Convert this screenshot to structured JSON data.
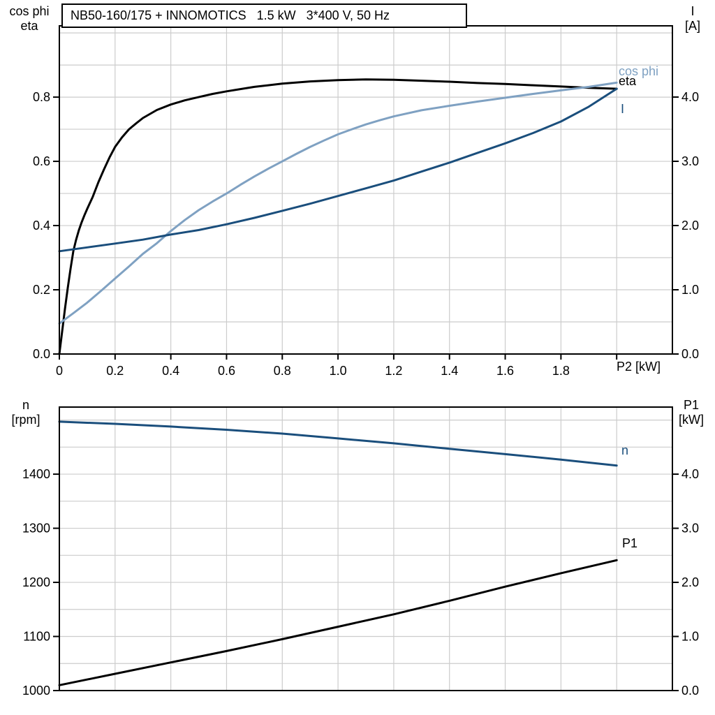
{
  "window": {
    "background": "#ffffff"
  },
  "title_box": {
    "text": "NB50-160/175 + INNOMOTICS   1.5 kW   3*400 V, 50 Hz"
  },
  "colors": {
    "eta": "#000000",
    "cos_phi": "#7fa1c2",
    "current": "#1a4e7c",
    "n": "#1a4e7c",
    "p1": "#000000",
    "grid": "#cccccc",
    "axis": "#000000",
    "text": "#000000"
  },
  "chart_data": [
    {
      "type": "line",
      "title": "NB50-160/175 + INNOMOTICS   1.5 kW   3*400 V, 50 Hz",
      "left_axis": {
        "label_lines": [
          "cos phi",
          "eta"
        ],
        "range": [
          0,
          1.022
        ],
        "tick_values": [
          0.0,
          0.2,
          0.4,
          0.6,
          0.8
        ],
        "tick_labels": [
          "0.0",
          "0.2",
          "0.4",
          "0.6",
          "0.8"
        ],
        "grid": {
          "start": 0.1,
          "end": 1.0,
          "step": 0.1
        }
      },
      "right_axis": {
        "label_lines": [
          "I",
          "[A]"
        ],
        "range": [
          0,
          5.109
        ],
        "tick_values": [
          0.0,
          1.0,
          2.0,
          3.0,
          4.0
        ],
        "tick_labels": [
          "0.0",
          "1.0",
          "2.0",
          "3.0",
          "4.0"
        ]
      },
      "x_axis": {
        "label": "P2 [kW]",
        "range": [
          0,
          2.2
        ],
        "show_ticks": true,
        "tick_values": [
          0,
          0.2,
          0.4,
          0.6,
          0.8,
          1.0,
          1.2,
          1.4,
          1.6,
          1.8,
          2.0
        ],
        "tick_labels": [
          "0",
          "0.2",
          "0.4",
          "0.6",
          "0.8",
          "1.0",
          "1.2",
          "1.4",
          "1.6",
          "1.8",
          ""
        ],
        "grid": {
          "start": 0.2,
          "end": 2.0,
          "step": 0.2
        }
      },
      "series": [
        {
          "name": "eta",
          "label": "eta",
          "axis": "left",
          "color_key": "eta",
          "points": [
            [
              0,
              0
            ],
            [
              0.01,
              0.07
            ],
            [
              0.02,
              0.14
            ],
            [
              0.03,
              0.205
            ],
            [
              0.04,
              0.265
            ],
            [
              0.05,
              0.32
            ],
            [
              0.06,
              0.355
            ],
            [
              0.07,
              0.385
            ],
            [
              0.08,
              0.41
            ],
            [
              0.09,
              0.432
            ],
            [
              0.1,
              0.452
            ],
            [
              0.12,
              0.49
            ],
            [
              0.14,
              0.535
            ],
            [
              0.16,
              0.575
            ],
            [
              0.18,
              0.612
            ],
            [
              0.2,
              0.645
            ],
            [
              0.225,
              0.675
            ],
            [
              0.25,
              0.7
            ],
            [
              0.275,
              0.718
            ],
            [
              0.3,
              0.735
            ],
            [
              0.35,
              0.76
            ],
            [
              0.4,
              0.777
            ],
            [
              0.45,
              0.79
            ],
            [
              0.5,
              0.8
            ],
            [
              0.55,
              0.81
            ],
            [
              0.6,
              0.818
            ],
            [
              0.7,
              0.832
            ],
            [
              0.8,
              0.842
            ],
            [
              0.9,
              0.849
            ],
            [
              1.0,
              0.853
            ],
            [
              1.1,
              0.855
            ],
            [
              1.2,
              0.854
            ],
            [
              1.3,
              0.851
            ],
            [
              1.4,
              0.848
            ],
            [
              1.5,
              0.844
            ],
            [
              1.6,
              0.841
            ],
            [
              1.7,
              0.837
            ],
            [
              1.8,
              0.833
            ],
            [
              1.9,
              0.829
            ],
            [
              2.0,
              0.826
            ]
          ]
        },
        {
          "name": "cos phi",
          "label": "cos phi",
          "axis": "left",
          "color_key": "cos_phi",
          "points": [
            [
              0,
              0.095
            ],
            [
              0.05,
              0.127
            ],
            [
              0.1,
              0.16
            ],
            [
              0.15,
              0.197
            ],
            [
              0.2,
              0.235
            ],
            [
              0.25,
              0.273
            ],
            [
              0.3,
              0.312
            ],
            [
              0.35,
              0.345
            ],
            [
              0.4,
              0.383
            ],
            [
              0.45,
              0.417
            ],
            [
              0.5,
              0.448
            ],
            [
              0.55,
              0.475
            ],
            [
              0.6,
              0.5
            ],
            [
              0.65,
              0.527
            ],
            [
              0.7,
              0.553
            ],
            [
              0.75,
              0.577
            ],
            [
              0.8,
              0.6
            ],
            [
              0.85,
              0.623
            ],
            [
              0.9,
              0.645
            ],
            [
              0.95,
              0.665
            ],
            [
              1.0,
              0.684
            ],
            [
              1.05,
              0.7
            ],
            [
              1.1,
              0.715
            ],
            [
              1.15,
              0.728
            ],
            [
              1.2,
              0.74
            ],
            [
              1.3,
              0.759
            ],
            [
              1.4,
              0.773
            ],
            [
              1.5,
              0.786
            ],
            [
              1.6,
              0.798
            ],
            [
              1.7,
              0.81
            ],
            [
              1.8,
              0.821
            ],
            [
              1.9,
              0.832
            ],
            [
              2.0,
              0.845
            ]
          ]
        },
        {
          "name": "I",
          "label": "I",
          "axis": "right",
          "color_key": "current",
          "points": [
            [
              0,
              1.6
            ],
            [
              0.1,
              1.66
            ],
            [
              0.2,
              1.72
            ],
            [
              0.3,
              1.78
            ],
            [
              0.4,
              1.86
            ],
            [
              0.5,
              1.93
            ],
            [
              0.6,
              2.02
            ],
            [
              0.7,
              2.12
            ],
            [
              0.8,
              2.23
            ],
            [
              0.9,
              2.34
            ],
            [
              1.0,
              2.46
            ],
            [
              1.1,
              2.58
            ],
            [
              1.2,
              2.7
            ],
            [
              1.3,
              2.84
            ],
            [
              1.4,
              2.98
            ],
            [
              1.5,
              3.13
            ],
            [
              1.6,
              3.28
            ],
            [
              1.7,
              3.44
            ],
            [
              1.8,
              3.62
            ],
            [
              1.9,
              3.85
            ],
            [
              2.0,
              4.13
            ]
          ]
        }
      ]
    },
    {
      "type": "line",
      "left_axis": {
        "label_lines": [
          "n",
          "[rpm]"
        ],
        "range": [
          1000,
          1524
        ],
        "tick_values": [
          1000,
          1100,
          1200,
          1300,
          1400
        ],
        "tick_labels": [
          "1000",
          "1100",
          "1200",
          "1300",
          "1400"
        ],
        "grid": {
          "start": 1050,
          "end": 1500,
          "step": 50
        }
      },
      "right_axis": {
        "label_lines": [
          "P1",
          "[kW]"
        ],
        "range": [
          0,
          5.24
        ],
        "tick_values": [
          0.0,
          1.0,
          2.0,
          3.0,
          4.0
        ],
        "tick_labels": [
          "0.0",
          "1.0",
          "2.0",
          "3.0",
          "4.0"
        ]
      },
      "x_axis": {
        "label": "",
        "range": [
          0,
          2.2
        ],
        "show_ticks": false,
        "tick_values": [],
        "tick_labels": [],
        "grid": {
          "start": 0.2,
          "end": 2.0,
          "step": 0.2
        }
      },
      "series": [
        {
          "name": "n",
          "label": "n",
          "axis": "left",
          "color_key": "n",
          "points": [
            [
              0,
              1497
            ],
            [
              0.2,
              1493
            ],
            [
              0.4,
              1488
            ],
            [
              0.6,
              1482
            ],
            [
              0.8,
              1475
            ],
            [
              1.0,
              1466
            ],
            [
              1.2,
              1457
            ],
            [
              1.4,
              1447
            ],
            [
              1.6,
              1437
            ],
            [
              1.8,
              1427
            ],
            [
              2.0,
              1416
            ]
          ]
        },
        {
          "name": "P1",
          "label": "P1",
          "axis": "right",
          "color_key": "p1",
          "points": [
            [
              0,
              0.1
            ],
            [
              0.2,
              0.31
            ],
            [
              0.4,
              0.52
            ],
            [
              0.6,
              0.73
            ],
            [
              0.8,
              0.95
            ],
            [
              1.0,
              1.18
            ],
            [
              1.2,
              1.41
            ],
            [
              1.4,
              1.66
            ],
            [
              1.6,
              1.92
            ],
            [
              1.8,
              2.17
            ],
            [
              2.0,
              2.41
            ]
          ]
        }
      ]
    }
  ]
}
